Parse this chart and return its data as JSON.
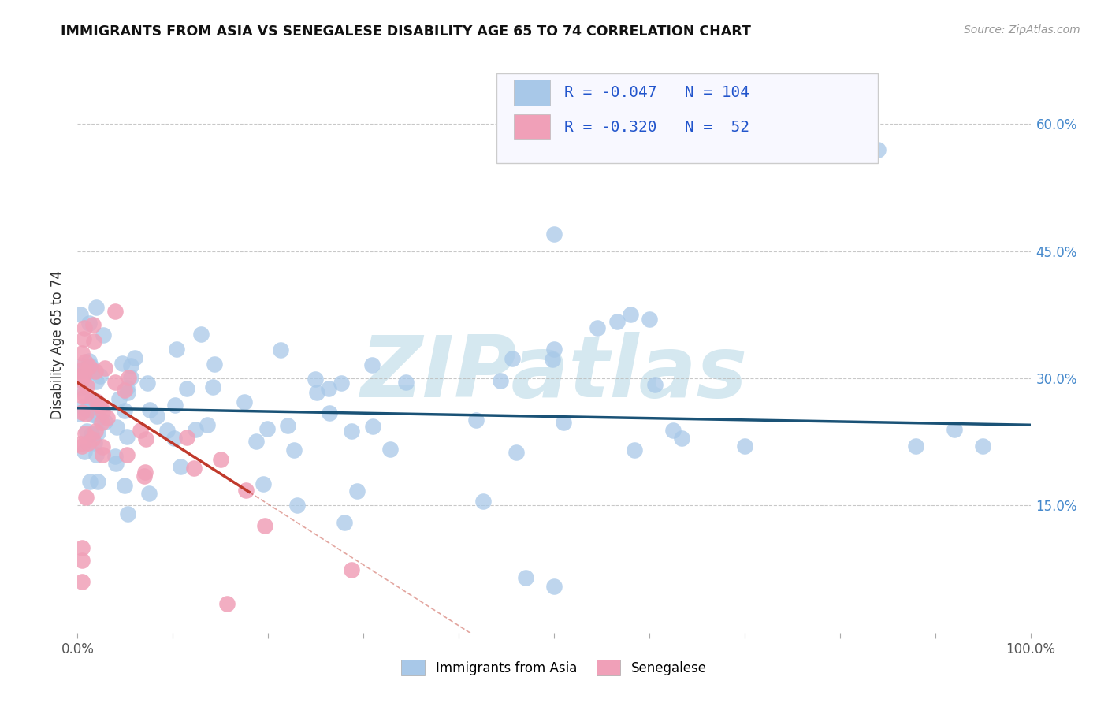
{
  "title": "IMMIGRANTS FROM ASIA VS SENEGALESE DISABILITY AGE 65 TO 74 CORRELATION CHART",
  "source_text": "Source: ZipAtlas.com",
  "ylabel": "Disability Age 65 to 74",
  "xlim": [
    0.0,
    1.0
  ],
  "ylim": [
    0.0,
    0.68
  ],
  "r_blue": -0.047,
  "n_blue": 104,
  "r_pink": -0.32,
  "n_pink": 52,
  "blue_color": "#A8C8E8",
  "pink_color": "#F0A0B8",
  "blue_line_color": "#1A5276",
  "pink_line_color": "#C0392B",
  "legend_label_blue": "Immigrants from Asia",
  "legend_label_pink": "Senegalese",
  "watermark": "ZIPatlas",
  "watermark_color": "#D5E8F0",
  "background_color": "#FFFFFF",
  "y_ticks": [
    0.15,
    0.3,
    0.45,
    0.6
  ],
  "y_tick_labels": [
    "15.0%",
    "30.0%",
    "45.0%",
    "60.0%"
  ],
  "blue_line_y_start": 0.265,
  "blue_line_y_end": 0.245,
  "pink_line_y_start": 0.295,
  "pink_line_y_end": 0.08
}
